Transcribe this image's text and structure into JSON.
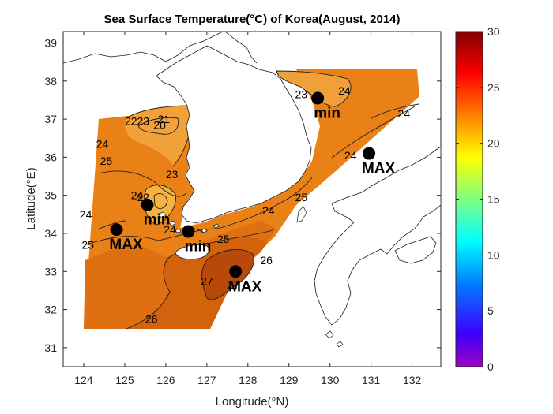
{
  "title": "Sea Surface Temperature(°C) of Korea(August, 2014)",
  "xlabel": "Longitude(°N)",
  "ylabel": "Latitude(°E)",
  "x_ticks": [
    "124",
    "125",
    "126",
    "127",
    "128",
    "129",
    "130",
    "131",
    "132"
  ],
  "y_ticks": [
    "31",
    "32",
    "33",
    "34",
    "35",
    "36",
    "37",
    "38",
    "39"
  ],
  "colorbar_ticks": [
    "0",
    "5",
    "10",
    "15",
    "20",
    "25",
    "30"
  ],
  "colormap": "jet",
  "markers": [
    {
      "label": "min",
      "lon": 129.7,
      "lat": 37.55
    },
    {
      "label": "MAX",
      "lon": 130.95,
      "lat": 36.1
    },
    {
      "label": "min",
      "lon": 125.55,
      "lat": 34.75
    },
    {
      "label": "MAX",
      "lon": 124.8,
      "lat": 34.1
    },
    {
      "label": "min",
      "lon": 126.55,
      "lat": 34.05
    },
    {
      "label": "MAX",
      "lon": 127.7,
      "lat": 33.0
    }
  ],
  "contour_labels": [
    {
      "text": "24",
      "lon": 130.35,
      "lat": 37.75
    },
    {
      "text": "23",
      "lon": 129.3,
      "lat": 37.65
    },
    {
      "text": "24",
      "lon": 131.8,
      "lat": 37.15
    },
    {
      "text": "24",
      "lon": 130.5,
      "lat": 36.05
    },
    {
      "text": "24",
      "lon": 124.45,
      "lat": 36.35
    },
    {
      "text": "25",
      "lon": 124.55,
      "lat": 35.9
    },
    {
      "text": "24",
      "lon": 125.3,
      "lat": 35.0
    },
    {
      "text": "25",
      "lon": 129.3,
      "lat": 34.95
    },
    {
      "text": "24",
      "lon": 128.5,
      "lat": 34.6
    },
    {
      "text": "24",
      "lon": 124.05,
      "lat": 34.5
    },
    {
      "text": "25",
      "lon": 124.1,
      "lat": 33.7
    },
    {
      "text": "25",
      "lon": 127.4,
      "lat": 33.85
    },
    {
      "text": "26",
      "lon": 128.45,
      "lat": 33.3
    },
    {
      "text": "27",
      "lon": 127.0,
      "lat": 32.75
    },
    {
      "text": "27",
      "lon": 127.65,
      "lat": 32.65
    },
    {
      "text": "26",
      "lon": 125.65,
      "lat": 31.75
    },
    {
      "text": "22",
      "lon": 125.15,
      "lat": 36.95
    },
    {
      "text": "23",
      "lon": 125.45,
      "lat": 36.95
    },
    {
      "text": "20",
      "lon": 125.85,
      "lat": 36.85
    },
    {
      "text": "21",
      "lon": 125.95,
      "lat": 37.0
    },
    {
      "text": "23",
      "lon": 126.15,
      "lat": 35.55
    },
    {
      "text": "22",
      "lon": 125.45,
      "lat": 34.95
    },
    {
      "text": "24",
      "lon": 126.1,
      "lat": 34.1
    }
  ]
}
